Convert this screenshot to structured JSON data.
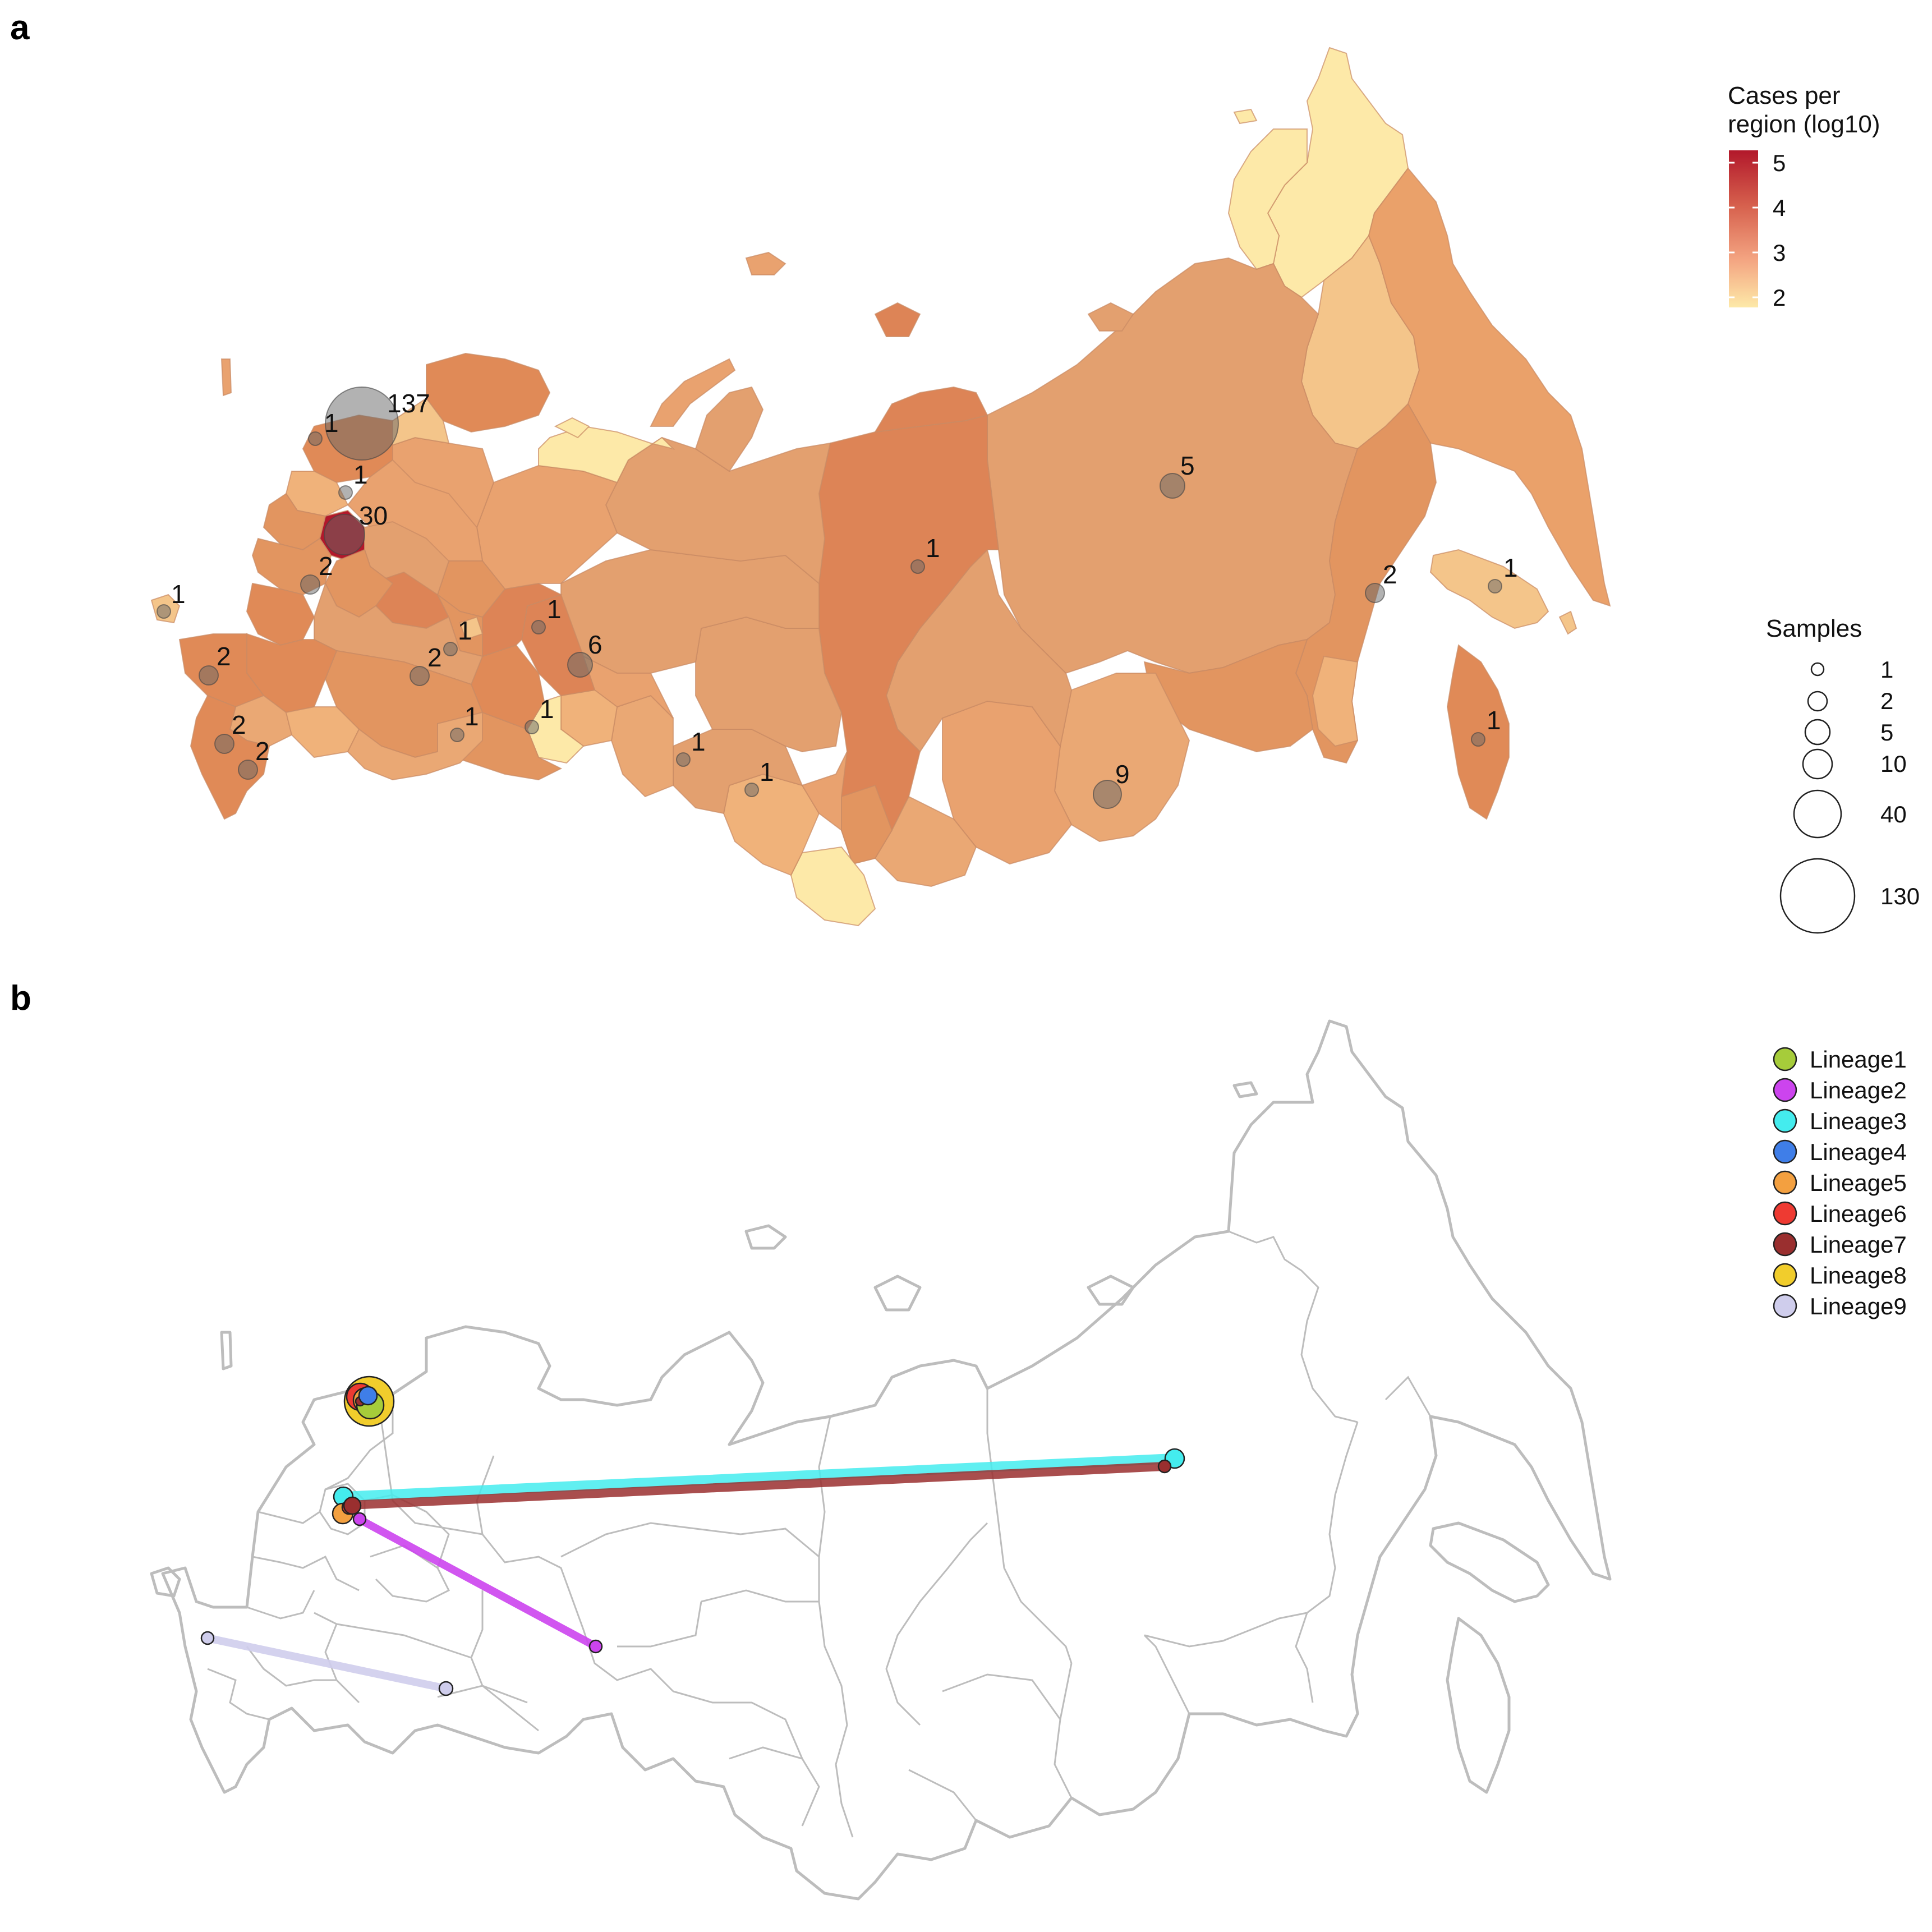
{
  "panels": {
    "a": {
      "letter": "a"
    },
    "b": {
      "letter": "b"
    }
  },
  "color_legend": {
    "title_line1": "Cases per",
    "title_line2": "region (log10)",
    "ticks": [
      "5",
      "4",
      "3",
      "2"
    ],
    "colors": [
      "#b2182b",
      "#d6604d",
      "#f4a582",
      "#fde9a8"
    ]
  },
  "size_legend": {
    "title": "Samples",
    "entries": [
      "1",
      "2",
      "5",
      "10",
      "40",
      "130"
    ]
  },
  "lineage_legend": {
    "entries": [
      {
        "label": "Lineage1",
        "color": "#a6cc3a"
      },
      {
        "label": "Lineage2",
        "color": "#cc44ee"
      },
      {
        "label": "Lineage3",
        "color": "#44ecee"
      },
      {
        "label": "Lineage4",
        "color": "#3f7ee8"
      },
      {
        "label": "Lineage5",
        "color": "#f3a040"
      },
      {
        "label": "Lineage6",
        "color": "#ee3a32"
      },
      {
        "label": "Lineage7",
        "color": "#9a2f2f"
      },
      {
        "label": "Lineage8",
        "color": "#f1cd2c"
      },
      {
        "label": "Lineage9",
        "color": "#cfcdec"
      }
    ]
  },
  "sample_counts": [
    "137",
    "1",
    "1",
    "30",
    "2",
    "1",
    "1",
    "1",
    "6",
    "2",
    "2",
    "1",
    "1",
    "2",
    "2",
    "1",
    "1",
    "1",
    "5",
    "9",
    "2",
    "1",
    "1"
  ]
}
